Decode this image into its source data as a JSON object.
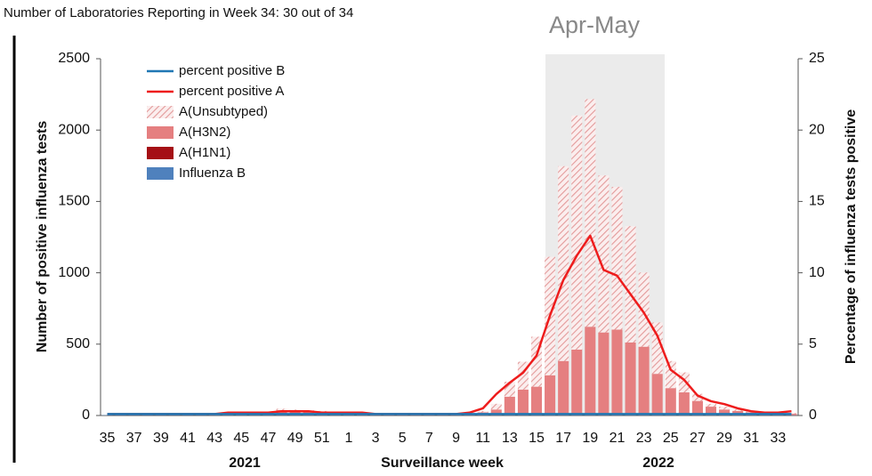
{
  "header": "Number of Laboratories Reporting in Week 34: 30 out of 34",
  "chart_data": {
    "type": "stacked_bar_line",
    "x_label": "Surveillance week",
    "y_label": "Number of positive influenza tests",
    "y2_label": "Percentage of influenza tests positive",
    "highlight_label": "Apr-May",
    "year_labels": [
      "2021",
      "2022"
    ],
    "categories": [
      "35",
      null,
      "37",
      null,
      "39",
      null,
      "41",
      null,
      "43",
      null,
      "45",
      null,
      "47",
      null,
      "49",
      null,
      "51",
      null,
      "1",
      null,
      "3",
      null,
      "5",
      null,
      "7",
      null,
      "9",
      null,
      "11",
      null,
      "13",
      null,
      "15",
      null,
      "17",
      null,
      "19",
      null,
      "21",
      null,
      "23",
      null,
      "25",
      null,
      "27",
      null,
      "29",
      null,
      "31",
      null,
      "33",
      null
    ],
    "ylim": [
      0,
      2500
    ],
    "yticks": [
      0,
      500,
      1000,
      1500,
      2000,
      2500
    ],
    "y2lim": [
      0,
      25
    ],
    "y2ticks": [
      0,
      5,
      10,
      15,
      20,
      25
    ],
    "grid": false,
    "legend": "upper left",
    "series": [
      {
        "name": "Influenza B",
        "kind": "bar",
        "color": "#4f81bd",
        "values": [
          2,
          2,
          2,
          2,
          2,
          2,
          2,
          2,
          2,
          2,
          2,
          2,
          2,
          2,
          2,
          2,
          2,
          2,
          2,
          2,
          2,
          2,
          2,
          2,
          2,
          2,
          2,
          2,
          2,
          2,
          2,
          2,
          2,
          2,
          2,
          2,
          2,
          2,
          2,
          2,
          2,
          2,
          2,
          2,
          2,
          2,
          2,
          2,
          2,
          2,
          2,
          2
        ]
      },
      {
        "name": "A(H1N1)",
        "kind": "bar",
        "color": "#a50f15",
        "values": [
          0,
          0,
          0,
          0,
          0,
          0,
          0,
          0,
          0,
          0,
          0,
          0,
          0,
          0,
          0,
          0,
          0,
          0,
          0,
          0,
          0,
          0,
          0,
          0,
          0,
          0,
          0,
          0,
          0,
          0,
          0,
          0,
          0,
          0,
          0,
          0,
          0,
          0,
          0,
          0,
          0,
          0,
          0,
          0,
          0,
          0,
          0,
          0,
          0,
          0,
          0,
          0
        ]
      },
      {
        "name": "A(H3N2)",
        "kind": "bar",
        "color": "#e57f80",
        "values": [
          0,
          0,
          0,
          0,
          0,
          0,
          0,
          0,
          5,
          10,
          15,
          15,
          20,
          35,
          30,
          28,
          22,
          15,
          10,
          10,
          7,
          7,
          3,
          3,
          3,
          3,
          5,
          10,
          20,
          40,
          130,
          180,
          200,
          280,
          380,
          460,
          620,
          580,
          600,
          510,
          480,
          290,
          190,
          160,
          100,
          60,
          40,
          30,
          20,
          15,
          10,
          10
        ]
      },
      {
        "name": "A(Unsubtyped)",
        "kind": "hatched_bar",
        "color": "#e39a9a",
        "values": [
          0,
          0,
          0,
          0,
          0,
          0,
          0,
          0,
          0,
          5,
          5,
          5,
          5,
          10,
          10,
          7,
          8,
          5,
          5,
          5,
          3,
          3,
          2,
          2,
          2,
          2,
          5,
          5,
          10,
          40,
          105,
          195,
          350,
          830,
          1365,
          1640,
          1595,
          1100,
          1000,
          815,
          520,
          360,
          190,
          140,
          50,
          20,
          20,
          10,
          5,
          5,
          5,
          5
        ]
      },
      {
        "name": "percent positive A",
        "kind": "line",
        "axis": "y2",
        "color": "#ee1c1c",
        "values": [
          0.1,
          0.1,
          0.1,
          0.1,
          0.1,
          0.1,
          0.1,
          0.1,
          0.1,
          0.2,
          0.2,
          0.2,
          0.2,
          0.3,
          0.3,
          0.3,
          0.2,
          0.2,
          0.2,
          0.2,
          0.1,
          0.1,
          0.1,
          0.1,
          0.1,
          0.1,
          0.1,
          0.2,
          0.5,
          1.5,
          2.3,
          3.0,
          4.2,
          7.0,
          9.5,
          11.2,
          12.6,
          10.2,
          9.8,
          8.5,
          7.2,
          5.6,
          3.2,
          2.5,
          1.4,
          1.0,
          0.8,
          0.5,
          0.3,
          0.2,
          0.2,
          0.3
        ]
      },
      {
        "name": "percent positive B",
        "kind": "line",
        "axis": "y2",
        "color": "#1f77b4",
        "values": [
          0.1,
          0.1,
          0.1,
          0.1,
          0.1,
          0.1,
          0.1,
          0.1,
          0.1,
          0.1,
          0.1,
          0.1,
          0.1,
          0.1,
          0.1,
          0.1,
          0.1,
          0.1,
          0.1,
          0.1,
          0.1,
          0.1,
          0.1,
          0.1,
          0.1,
          0.1,
          0.1,
          0.1,
          0.1,
          0.1,
          0.1,
          0.1,
          0.1,
          0.1,
          0.1,
          0.1,
          0.1,
          0.1,
          0.1,
          0.1,
          0.1,
          0.1,
          0.1,
          0.1,
          0.1,
          0.1,
          0.1,
          0.1,
          0.1,
          0.1,
          0.1,
          0.1
        ]
      }
    ]
  }
}
